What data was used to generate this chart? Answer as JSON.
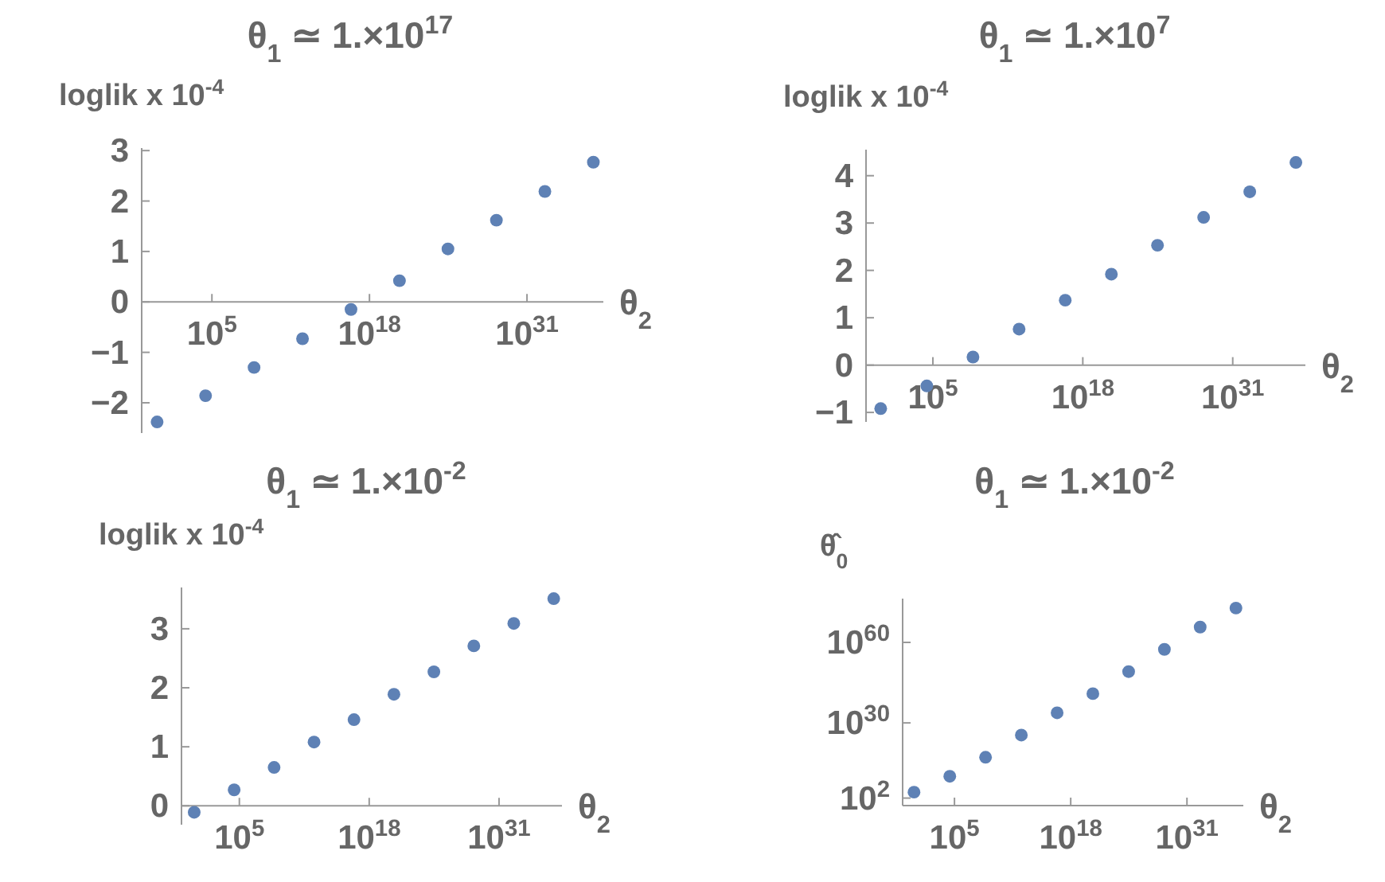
{
  "chart_data": [
    {
      "type": "scatter",
      "title": "θ$_{1}$ ≃ 1.×10$^{17}$",
      "ylabel": "loglik x 10$^{-4}$",
      "xlabel": "θ$_{2}$",
      "log": "x",
      "marker": "circle",
      "color": "#5e81b5",
      "x": [
        3,
        30000.0,
        300000000.0,
        3000000000000.0,
        3e+16,
        3e+20,
        3e+24,
        3e+28,
        3e+32,
        3e+36
      ],
      "values": [
        -2.38,
        -1.86,
        -1.3,
        -0.73,
        -0.15,
        0.42,
        1.05,
        1.62,
        2.19,
        2.77
      ],
      "xlim": [
        0.16,
        2e+37
      ],
      "xticks": [
        {
          "value": 100000.0,
          "label": "10$^{5}$"
        },
        {
          "value": 1e+18,
          "label": "10$^{18}$"
        },
        {
          "value": 1e+31,
          "label": "10$^{31}$"
        }
      ],
      "ylim": [
        -2.6,
        3.05
      ],
      "yticks": [
        {
          "value": -2,
          "label": "−2"
        },
        {
          "value": -1,
          "label": "−1"
        },
        0,
        1,
        2,
        3
      ]
    },
    {
      "type": "scatter",
      "title": "θ$_{1}$ ≃ 1.×10$^{7}$",
      "ylabel": "loglik x 10$^{-4}$",
      "xlabel": "θ$_{2}$",
      "log": "x",
      "marker": "circle",
      "color": "#5e81b5",
      "x": [
        3,
        30000.0,
        300000000.0,
        3000000000000.0,
        3e+16,
        3e+20,
        3e+24,
        3e+28,
        3e+32,
        3e+36
      ],
      "values": [
        -0.92,
        -0.44,
        0.17,
        0.76,
        1.37,
        1.92,
        2.53,
        3.12,
        3.66,
        4.28
      ],
      "xlim": [
        0.16,
        2e+37
      ],
      "xticks": [
        {
          "value": 100000.0,
          "label": "10$^{5}$"
        },
        {
          "value": 1e+18,
          "label": "10$^{18}$"
        },
        {
          "value": 1e+31,
          "label": "10$^{31}$"
        }
      ],
      "ylim": [
        -1.2,
        4.55
      ],
      "yticks": [
        {
          "value": -1,
          "label": "−1"
        },
        0,
        1,
        2,
        3,
        4
      ]
    },
    {
      "type": "scatter",
      "title": "θ$_{1}$ ≃ 1.×10$^{-2}$",
      "ylabel": "loglik x 10$^{-4}$",
      "xlabel": "θ$_{2}$",
      "log": "x",
      "marker": "circle",
      "color": "#5e81b5",
      "x": [
        3,
        30000.0,
        300000000.0,
        3000000000000.0,
        3e+16,
        3e+20,
        3e+24,
        3e+28,
        3e+32,
        3e+36
      ],
      "values": [
        -0.11,
        0.27,
        0.65,
        1.08,
        1.46,
        1.89,
        2.27,
        2.71,
        3.09,
        3.51
      ],
      "xlim": [
        0.16,
        2e+37
      ],
      "xticks": [
        {
          "value": 100000.0,
          "label": "10$^{5}$"
        },
        {
          "value": 1e+18,
          "label": "10$^{18}$"
        },
        {
          "value": 1e+31,
          "label": "10$^{31}$"
        }
      ],
      "ylim": [
        -0.32,
        3.7
      ],
      "yticks": [
        0,
        1,
        2,
        3
      ]
    },
    {
      "type": "scatter",
      "title": "θ$_{1}$ ≃ 1.×10$^{-2}$",
      "ylabel": "θ̂$_{0}$",
      "xlabel": "θ$_{2}$",
      "log": "xy",
      "marker": "circle",
      "color": "#5e81b5",
      "x": [
        3,
        30000.0,
        300000000.0,
        3000000000000.0,
        3e+16,
        3e+20,
        3e+24,
        3e+28,
        3e+32,
        3e+36
      ],
      "values": [
        16000.0,
        13000000000.0,
        1.6e+17,
        3e+25,
        6e+33,
        8e+40,
        1.3e+49,
        2.5e+57,
        5e+65,
        6e+72
      ],
      "xlim": [
        0.16,
        2e+37
      ],
      "xticks": [
        {
          "value": 100000.0,
          "label": "10$^{5}$"
        },
        {
          "value": 1e+18,
          "label": "10$^{18}$"
        },
        {
          "value": 1e+31,
          "label": "10$^{31}$"
        }
      ],
      "ylim": [
        0.16,
        2e+76
      ],
      "yticks": [
        {
          "value": 100,
          "label": "10$^{2}$"
        },
        {
          "value": 1e+30,
          "label": "10$^{30}$"
        },
        {
          "value": 1e+60,
          "label": "10$^{60}$"
        }
      ]
    }
  ]
}
